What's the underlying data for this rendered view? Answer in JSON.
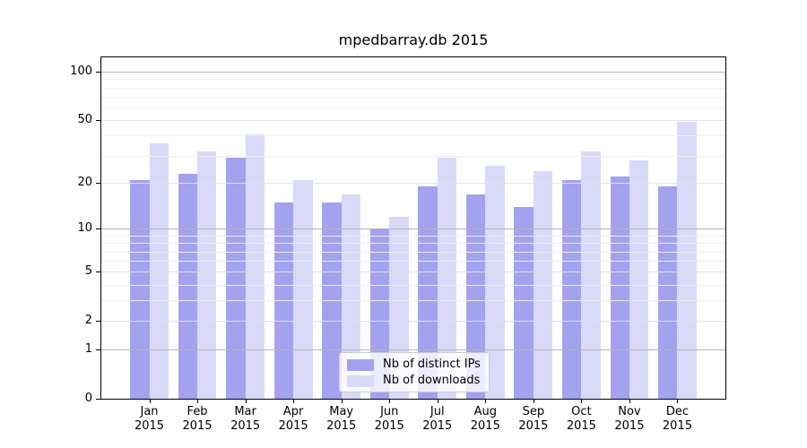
{
  "title": "mpedbarray.db 2015",
  "colors": {
    "ips": "#a2a2ef",
    "downloads": "#d9d9f8",
    "grid_major": "#b5b5b5",
    "grid_labeled": "#e2e2e2",
    "grid_minor": "#eeeeee",
    "spine": "#000000",
    "legend_border": "#cccccc"
  },
  "legend": {
    "items": [
      {
        "label": "Nb of distinct IPs",
        "series": "ips"
      },
      {
        "label": "Nb of downloads",
        "series": "downloads"
      }
    ]
  },
  "y_axis": {
    "tick_values": [
      100,
      50,
      20,
      10,
      5,
      2,
      1,
      0
    ],
    "tick_labels": [
      "100",
      "50",
      "20",
      "10",
      "5",
      "2",
      "1",
      "0"
    ],
    "major_grid_values": [
      1,
      10,
      100
    ],
    "labeled_grid_values": [
      2,
      5,
      20,
      50
    ],
    "minor_grid_values": [
      3,
      4,
      6,
      7,
      8,
      9,
      30,
      40,
      60,
      70,
      80,
      90
    ]
  },
  "x_axis": {
    "months": [
      "Jan",
      "Feb",
      "Mar",
      "Apr",
      "May",
      "Jun",
      "Jul",
      "Aug",
      "Sep",
      "Oct",
      "Nov",
      "Dec"
    ],
    "year": "2015"
  },
  "chart_data": {
    "type": "bar",
    "title": "mpedbarray.db 2015",
    "categories": [
      "Jan 2015",
      "Feb 2015",
      "Mar 2015",
      "Apr 2015",
      "May 2015",
      "Jun 2015",
      "Jul 2015",
      "Aug 2015",
      "Sep 2015",
      "Oct 2015",
      "Nov 2015",
      "Dec 2015"
    ],
    "series": [
      {
        "name": "Nb of distinct IPs",
        "color": "#a2a2ef",
        "values": [
          21,
          23,
          29,
          15,
          15,
          10,
          19,
          17,
          14,
          21,
          22,
          19
        ]
      },
      {
        "name": "Nb of downloads",
        "color": "#d9d9f8",
        "values": [
          36,
          32,
          41,
          21,
          17,
          12,
          29,
          26,
          24,
          32,
          28,
          49
        ]
      }
    ],
    "yscale": "log1p",
    "y_ticks": [
      0,
      1,
      2,
      5,
      10,
      20,
      50,
      100
    ],
    "ylim": [
      0,
      123
    ],
    "xlabel": "",
    "ylabel": "",
    "grid": true,
    "bar_width": 0.4,
    "legend_position": "lower center"
  }
}
